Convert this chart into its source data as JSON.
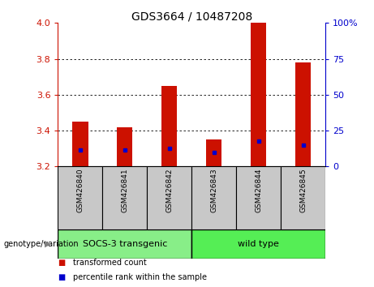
{
  "title": "GDS3664 / 10487208",
  "samples": [
    "GSM426840",
    "GSM426841",
    "GSM426842",
    "GSM426843",
    "GSM426844",
    "GSM426845"
  ],
  "red_bar_tops": [
    3.45,
    3.42,
    3.65,
    3.35,
    4.0,
    3.78
  ],
  "blue_marker_pos": [
    3.29,
    3.29,
    3.3,
    3.28,
    3.34,
    3.32
  ],
  "bar_bottom": 3.2,
  "ylim": [
    3.2,
    4.0
  ],
  "right_ylim": [
    0,
    100
  ],
  "right_yticks": [
    0,
    25,
    50,
    75,
    100
  ],
  "left_yticks": [
    3.2,
    3.4,
    3.6,
    3.8,
    4.0
  ],
  "red_color": "#CC1100",
  "blue_color": "#0000CC",
  "group1_label": "SOCS-3 transgenic",
  "group2_label": "wild type",
  "group1_color": "#88EE88",
  "group2_color": "#55EE55",
  "group_bg_color": "#C8C8C8",
  "genotype_label": "genotype/variation",
  "legend1": "transformed count",
  "legend2": "percentile rank within the sample",
  "bar_width": 0.35,
  "left_tick_color": "#CC1100",
  "right_tick_color": "#0000CC",
  "title_fontsize": 10,
  "tick_fontsize": 8,
  "label_fontsize": 7,
  "group_fontsize": 8
}
